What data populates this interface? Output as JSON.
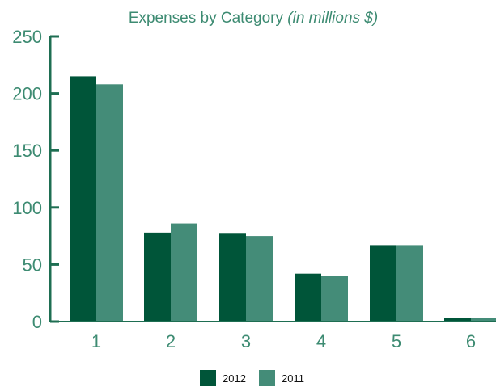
{
  "chart_data": {
    "type": "bar",
    "title": "Expenses by Category",
    "subtitle": "(in millions $)",
    "xlabel": "",
    "ylabel": "",
    "categories": [
      "1",
      "2",
      "3",
      "4",
      "5",
      "6"
    ],
    "series": [
      {
        "name": "2012",
        "values": [
          215,
          78,
          77,
          42,
          67,
          3
        ],
        "color": "#005539"
      },
      {
        "name": "2011",
        "values": [
          208,
          86,
          75,
          40,
          67,
          3
        ],
        "color": "#448c78"
      }
    ],
    "ylim": [
      0,
      250
    ],
    "yticks": [
      "0",
      "50",
      "100",
      "150",
      "200",
      "250"
    ],
    "grid": false,
    "legend_position": "bottom-center",
    "text_color": "#3d8b72",
    "axis_color": "#1e6e52"
  }
}
